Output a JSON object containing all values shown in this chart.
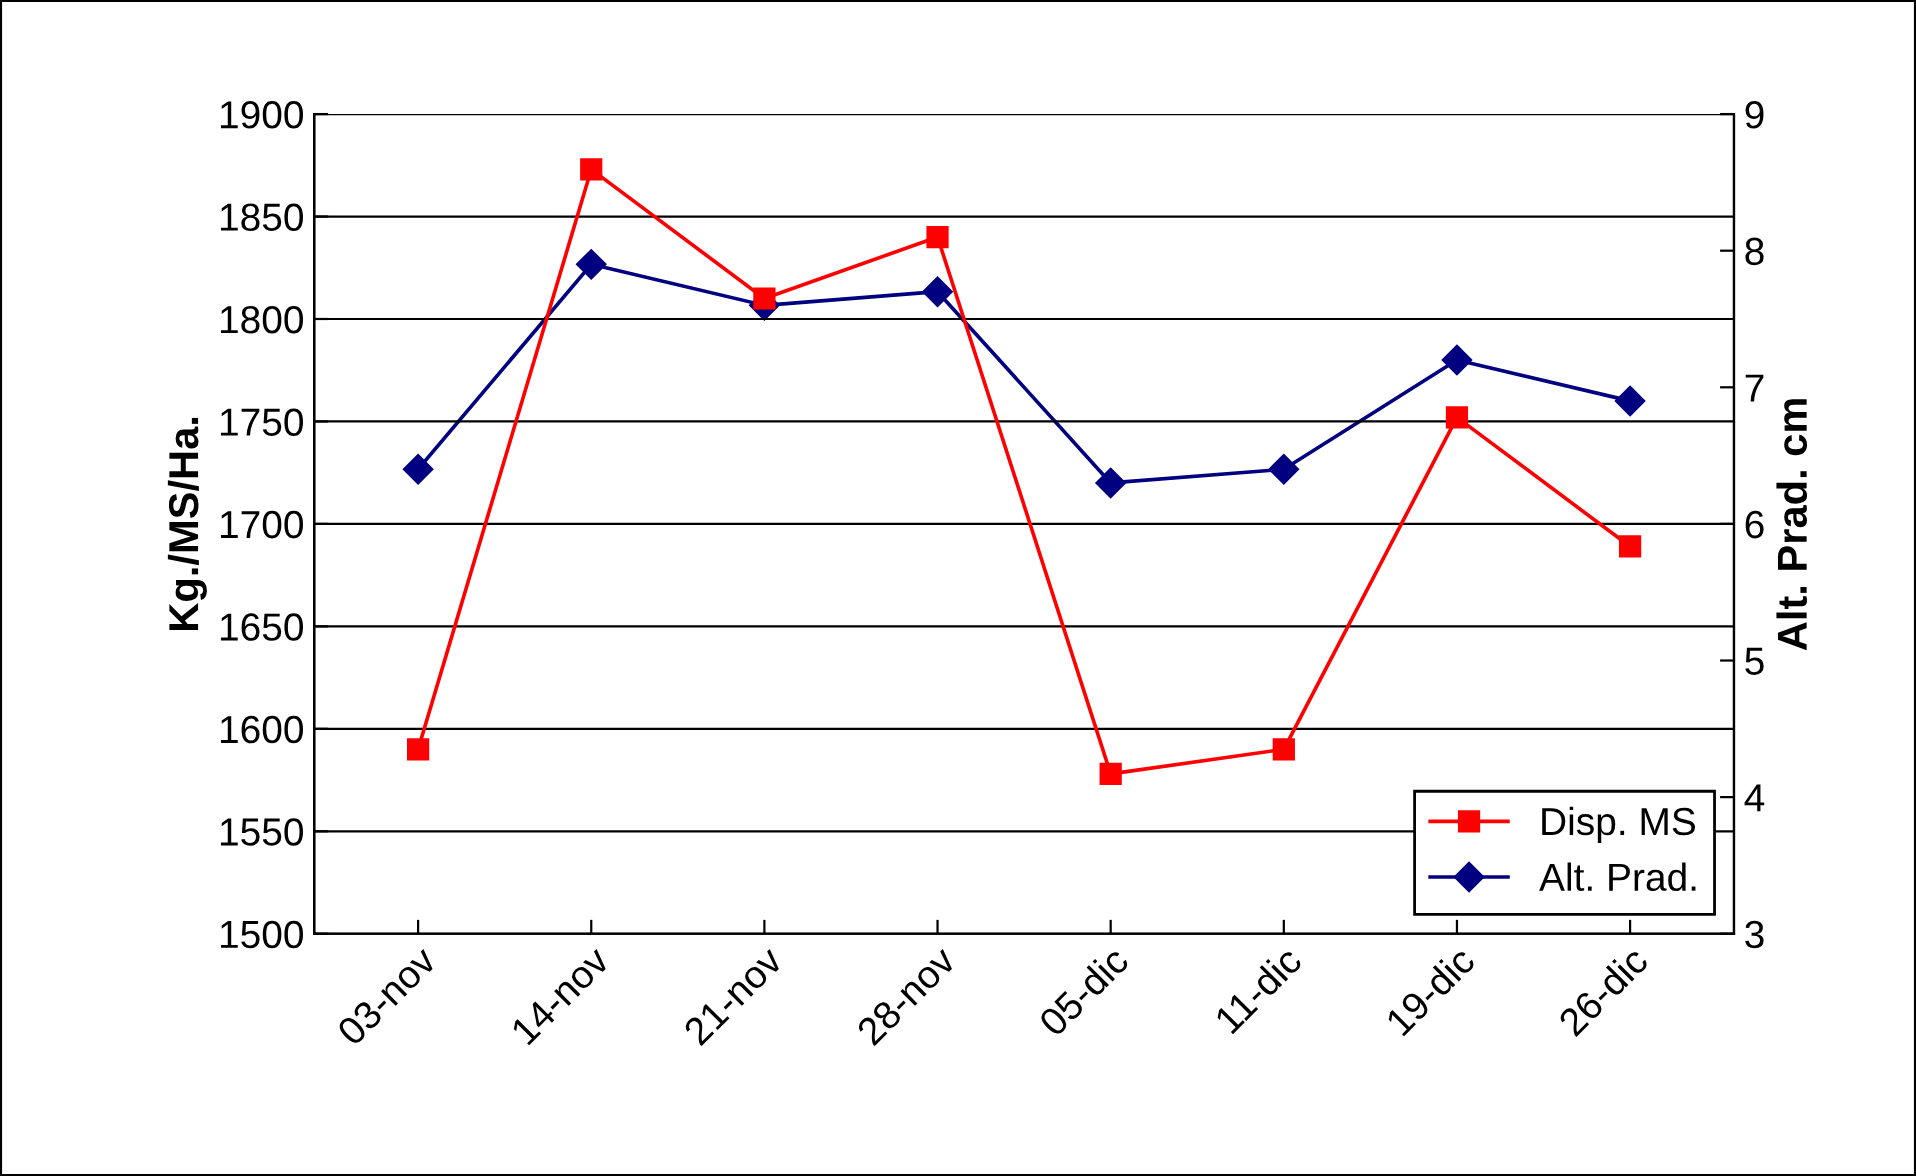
{
  "chart_data": {
    "type": "line",
    "ylabel": "Kg./MS/Ha.",
    "y2label": "Alt. Prad. cm",
    "categories": [
      "03-nov",
      "14-nov",
      "21-nov",
      "28-nov",
      "05-dic",
      "11-dic",
      "19-dic",
      "26-dic"
    ],
    "series": [
      {
        "name": "Disp. MS",
        "color": "#ff0000",
        "marker": "square",
        "values": [
          1590,
          1873,
          1810,
          1840,
          1578,
          1590,
          1752,
          1689
        ]
      },
      {
        "name": "Alt. Prad.",
        "color": "#000080",
        "marker": "diamond",
        "axis": "y2",
        "values": [
          6.4,
          7.9,
          7.6,
          7.7,
          6.3,
          6.4,
          7.2,
          6.9
        ]
      }
    ],
    "ylim": [
      1500,
      1900
    ],
    "yticks": [
      1500,
      1550,
      1600,
      1650,
      1700,
      1750,
      1800,
      1850,
      1900
    ],
    "y2lim": [
      3,
      9
    ],
    "y2ticks": [
      3,
      4,
      5,
      6,
      7,
      8,
      9
    ],
    "grid": "y",
    "legend": "bottom right",
    "line_style": "solid"
  }
}
